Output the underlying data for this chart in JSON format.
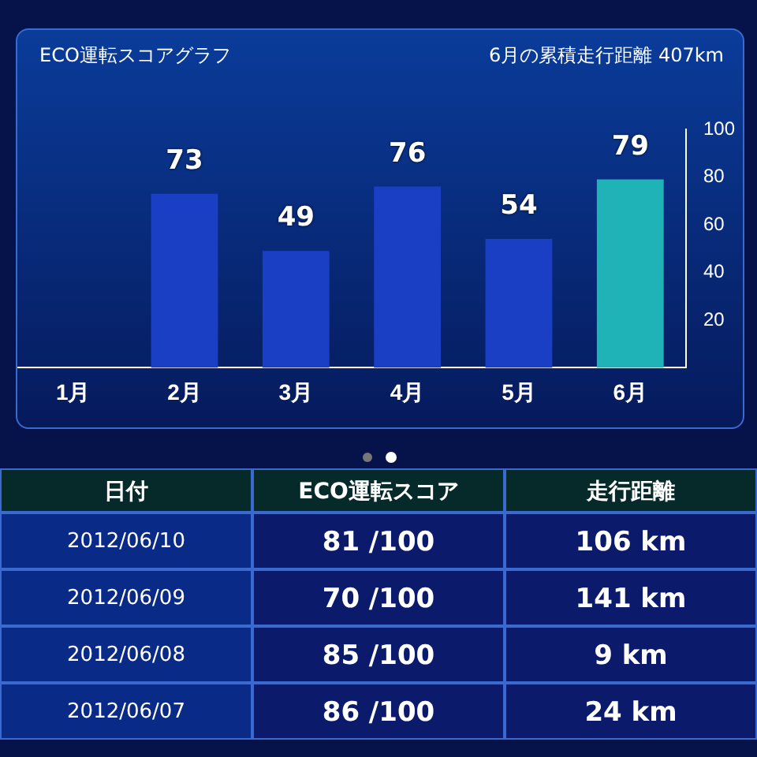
{
  "chart_data": [
    {
      "type": "bar",
      "title": "ECO運転スコアグラフ",
      "subtitle": "6月の累積走行距離 407km",
      "categories": [
        "1月",
        "2月",
        "3月",
        "4月",
        "5月",
        "6月"
      ],
      "values": [
        null,
        73,
        49,
        76,
        54,
        79
      ],
      "colors": [
        "#1a3fc4",
        "#1a3fc4",
        "#1a3fc4",
        "#1a3fc4",
        "#1a3fc4",
        "#1fb3b8"
      ],
      "ylim": [
        0,
        100
      ],
      "yticks": [
        20,
        40,
        60,
        80,
        100
      ],
      "grid": false,
      "data_labels": true
    },
    {
      "type": "other",
      "annotations": [
        "日付",
        "ECO運転スコア",
        "走行距離",
        "2012/06/10",
        "81 /100",
        "106 km",
        "2012/06/09",
        "70 /100",
        "141 km",
        "2012/06/08",
        "85 /100",
        "9 km",
        "2012/06/07",
        "86 /100",
        "24 km"
      ]
    }
  ]
}
